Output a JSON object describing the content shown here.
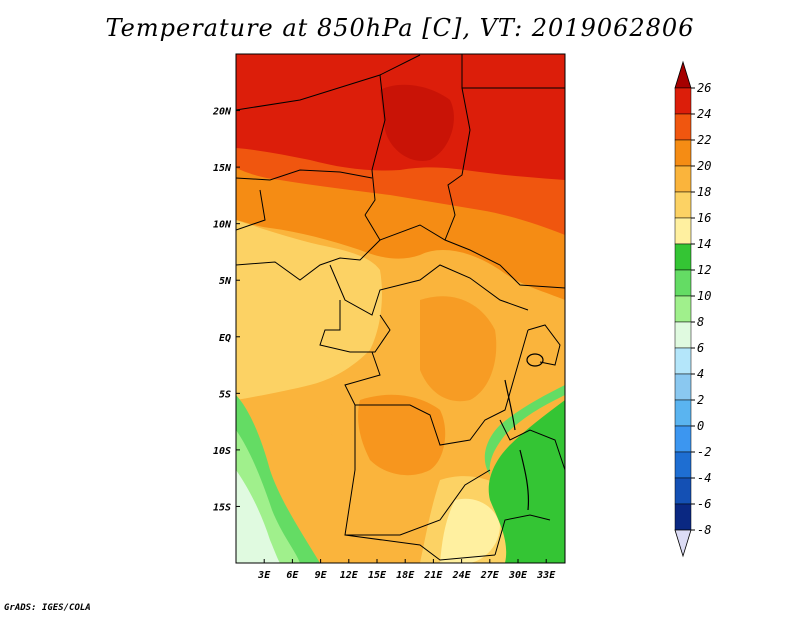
{
  "title": "Temperature at 850hPa [C], VT: 2019062806",
  "credit": "GrADS: IGES/COLA",
  "map": {
    "lon_range": [
      0,
      35
    ],
    "lat_range": [
      -20,
      25
    ],
    "lon_ticks": [
      {
        "value": 3,
        "label": "3E"
      },
      {
        "value": 6,
        "label": "6E"
      },
      {
        "value": 9,
        "label": "9E"
      },
      {
        "value": 12,
        "label": "12E"
      },
      {
        "value": 15,
        "label": "15E"
      },
      {
        "value": 18,
        "label": "18E"
      },
      {
        "value": 21,
        "label": "21E"
      },
      {
        "value": 24,
        "label": "24E"
      },
      {
        "value": 27,
        "label": "27E"
      },
      {
        "value": 30,
        "label": "30E"
      },
      {
        "value": 33,
        "label": "33E"
      }
    ],
    "lat_ticks": [
      {
        "value": 20,
        "label": "20N"
      },
      {
        "value": 15,
        "label": "15N"
      },
      {
        "value": 10,
        "label": "10N"
      },
      {
        "value": 5,
        "label": "5N"
      },
      {
        "value": 0,
        "label": "EQ"
      },
      {
        "value": -5,
        "label": "5S"
      },
      {
        "value": -10,
        "label": "10S"
      },
      {
        "value": -15,
        "label": "15S"
      }
    ]
  },
  "colorbar": {
    "levels": [
      "26",
      "24",
      "22",
      "20",
      "18",
      "16",
      "14",
      "12",
      "10",
      "8",
      "6",
      "4",
      "2",
      "0",
      "-2",
      "-4",
      "-6",
      "-8"
    ],
    "colors": [
      "#a50000",
      "#dc1e0a",
      "#f0560f",
      "#f58c14",
      "#fab43c",
      "#fcd264",
      "#fff0a0",
      "#34c534",
      "#64dc64",
      "#a0f08c",
      "#e0fae0",
      "#b4e6fa",
      "#8ac8f0",
      "#5ab4f0",
      "#3c96f0",
      "#1e6ed2",
      "#1450b4",
      "#0a2882",
      "#dcdcf5"
    ]
  }
}
